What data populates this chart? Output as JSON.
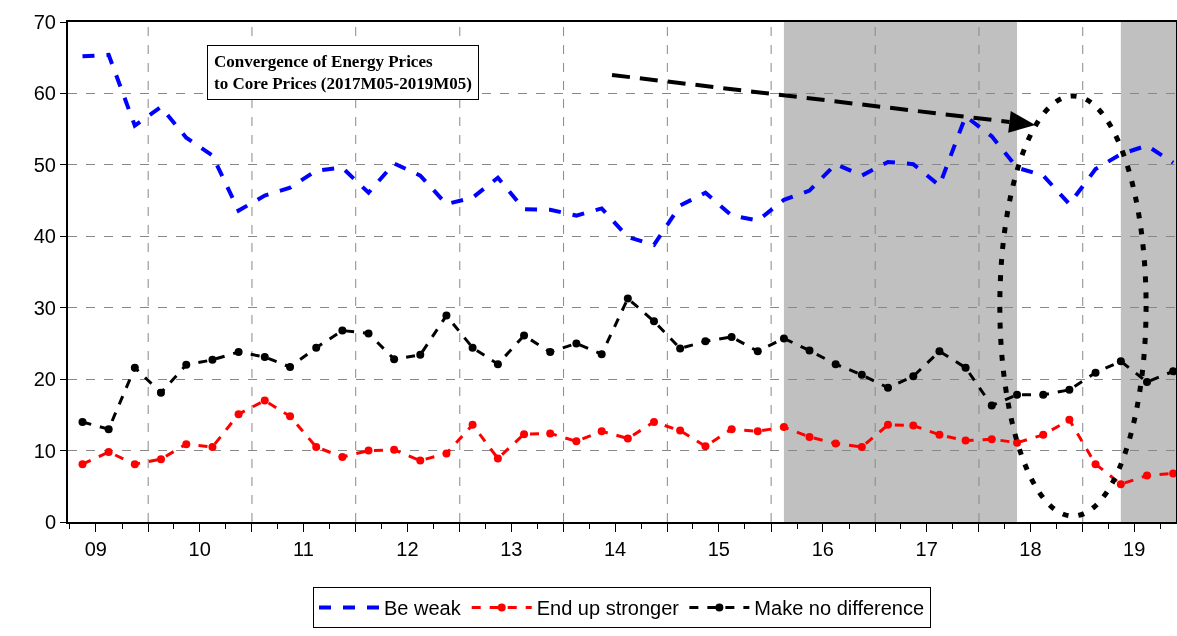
{
  "chart_data": {
    "type": "line",
    "x": [
      "2009-05-15",
      "2009-08-15",
      "2009-11-15",
      "2010-02-15",
      "2010-05-15",
      "2010-08-15",
      "2010-11-15",
      "2011-02-15",
      "2011-05-15",
      "2011-08-15",
      "2011-11-15",
      "2012-02-15",
      "2012-05-15",
      "2012-08-15",
      "2012-11-15",
      "2013-02-15",
      "2013-05-15",
      "2013-08-15",
      "2013-11-15",
      "2014-02-15",
      "2014-05-15",
      "2014-08-15",
      "2014-11-15",
      "2015-02-15",
      "2015-05-15",
      "2015-08-15",
      "2015-11-15",
      "2016-02-15",
      "2016-05-15",
      "2016-08-15",
      "2016-11-15",
      "2017-02-15",
      "2017-05-15",
      "2017-08-15",
      "2017-11-15",
      "2018-02-15",
      "2018-05-15",
      "2018-08-15",
      "2018-11-15",
      "2019-02-15",
      "2019-05-15",
      "2019-08-15",
      "2019-11-15"
    ],
    "series": [
      {
        "name": "Be weak",
        "color": "#0000ff",
        "line_style": "dashed",
        "marker": "none",
        "values": [
          65.2,
          65.4,
          55.5,
          58.1,
          53.8,
          51.3,
          43.6,
          45.7,
          46.8,
          49.2,
          49.6,
          46.1,
          50.2,
          48.5,
          44.5,
          45.4,
          48.2,
          43.8,
          43.7,
          42.9,
          43.9,
          39.9,
          38.8,
          44.3,
          46.1,
          42.9,
          42.2,
          45.1,
          46.4,
          50.1,
          48.5,
          50.4,
          50.1,
          47.1,
          56.8,
          54.0,
          49.6,
          48.5,
          44.5,
          49.4,
          51.5,
          52.7,
          50.3
        ]
      },
      {
        "name": "End up stronger",
        "color": "#ff0000",
        "line_style": "dashed",
        "marker": "circle",
        "values": [
          8.1,
          9.8,
          8.1,
          8.8,
          10.9,
          10.5,
          15.1,
          17.0,
          14.8,
          10.5,
          9.1,
          10.0,
          10.1,
          8.6,
          9.6,
          13.6,
          8.9,
          12.3,
          12.4,
          11.3,
          12.7,
          11.7,
          14.0,
          12.8,
          10.6,
          13.0,
          12.7,
          13.3,
          11.9,
          11.0,
          10.5,
          13.6,
          13.5,
          12.2,
          11.4,
          11.6,
          11.1,
          12.2,
          14.3,
          8.1,
          5.3,
          6.5,
          6.8
        ]
      },
      {
        "name": "Make no difference",
        "color": "#000000",
        "line_style": "dashed",
        "marker": "circle",
        "values": [
          14.0,
          13.0,
          21.6,
          18.1,
          22.0,
          22.7,
          23.8,
          23.1,
          21.7,
          24.4,
          26.8,
          26.4,
          22.8,
          23.4,
          28.9,
          24.4,
          22.1,
          26.1,
          23.8,
          25.0,
          23.5,
          31.3,
          28.1,
          24.3,
          25.3,
          25.9,
          23.9,
          25.7,
          24.0,
          22.1,
          20.6,
          18.8,
          20.4,
          23.9,
          21.6,
          16.3,
          17.8,
          17.8,
          18.5,
          20.9,
          22.5,
          19.6,
          21.1
        ]
      }
    ],
    "xlim": [
      "2009-03-25",
      "2019-11-25"
    ],
    "xticks": [
      {
        "value": "2009-07-01",
        "label": "09"
      },
      {
        "value": "2010-01-01",
        "label": null
      },
      {
        "value": "2010-07-01",
        "label": "10"
      },
      {
        "value": "2011-01-01",
        "label": null
      },
      {
        "value": "2011-07-01",
        "label": "11"
      },
      {
        "value": "2012-01-01",
        "label": null
      },
      {
        "value": "2012-07-01",
        "label": "12"
      },
      {
        "value": "2013-01-01",
        "label": null
      },
      {
        "value": "2013-07-01",
        "label": "13"
      },
      {
        "value": "2014-01-01",
        "label": null
      },
      {
        "value": "2014-07-01",
        "label": "14"
      },
      {
        "value": "2015-01-01",
        "label": null
      },
      {
        "value": "2015-07-01",
        "label": "15"
      },
      {
        "value": "2016-01-01",
        "label": null
      },
      {
        "value": "2016-07-01",
        "label": "16"
      },
      {
        "value": "2017-01-01",
        "label": null
      },
      {
        "value": "2017-07-01",
        "label": "17"
      },
      {
        "value": "2018-01-01",
        "label": null
      },
      {
        "value": "2018-07-01",
        "label": "18"
      },
      {
        "value": "2019-01-01",
        "label": null
      },
      {
        "value": "2019-07-01",
        "label": "19"
      }
    ],
    "ylim": [
      0,
      70
    ],
    "yticks": [
      0,
      10,
      20,
      30,
      40,
      50,
      60,
      70
    ],
    "grid": true,
    "legend": "bottom",
    "bands": [
      {
        "axis": "x",
        "from": "2016-02-15",
        "to": "2018-05-15",
        "color": "#c0c0c0"
      },
      {
        "axis": "x",
        "from": "2019-05-15",
        "to": "2019-11-25",
        "color": "#c0c0c0"
      }
    ],
    "annotations": [
      "Convergence of Energy Prices\nto Core Prices (2017M05-2019M05)"
    ]
  }
}
